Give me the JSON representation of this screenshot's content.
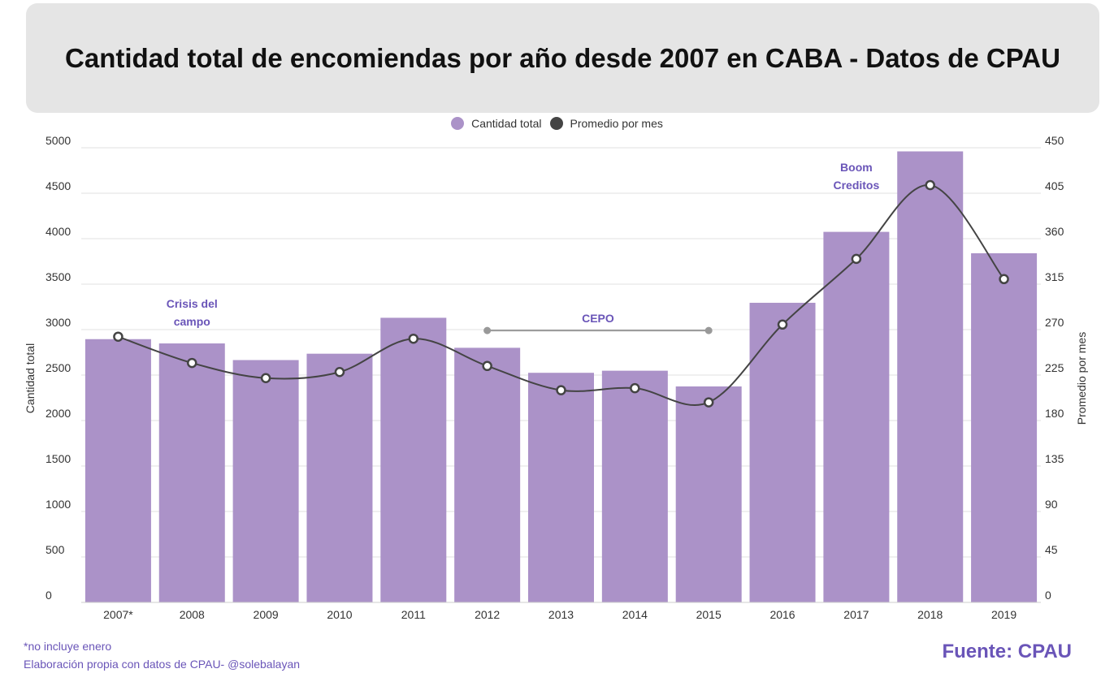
{
  "title": "Cantidad total de encomiendas por año desde 2007 en CABA - Datos de CPAU",
  "legend": {
    "bars_label": "Cantidad total",
    "line_label": "Promedio por mes"
  },
  "colors": {
    "bar": "#ab92c8",
    "line": "#444444",
    "annotation": "#6a55b8",
    "cepo_line": "#999999",
    "grid": "#e0e0e0",
    "axis_text": "#333333"
  },
  "chart_data": {
    "type": "bar+line",
    "categories": [
      "2007*",
      "2008",
      "2009",
      "2010",
      "2011",
      "2012",
      "2013",
      "2014",
      "2015",
      "2016",
      "2017",
      "2018",
      "2019"
    ],
    "series": [
      {
        "name": "Cantidad total",
        "type": "bar",
        "axis": "left",
        "values": [
          2895,
          2848,
          2665,
          2735,
          3130,
          2800,
          2525,
          2548,
          2375,
          3295,
          4075,
          4960,
          3840
        ]
      },
      {
        "name": "Promedio por mes",
        "type": "line",
        "axis": "right",
        "values": [
          263,
          237,
          222,
          228,
          261,
          234,
          210,
          212,
          198,
          275,
          340,
          413,
          320
        ]
      }
    ],
    "y_left": {
      "label": "Cantidad total",
      "min": 0,
      "max": 5000,
      "ticks": [
        "0",
        "500",
        "1000",
        "1500",
        "2000",
        "2500",
        "3000",
        "3500",
        "4000",
        "4500",
        "5000"
      ]
    },
    "y_right": {
      "label": "Promedio por mes",
      "min": 0,
      "max": 450,
      "ticks": [
        "0",
        "45",
        "90",
        "135",
        "180",
        "225",
        "270",
        "315",
        "360",
        "405",
        "450"
      ]
    },
    "annotations": [
      {
        "lines": [
          "Crisis del",
          "campo"
        ],
        "category": "2008",
        "value": 3240
      },
      {
        "lines": [
          "Boom",
          "Creditos"
        ],
        "category": "2017",
        "value": 4740
      },
      {
        "lines": [
          "CEPO"
        ],
        "category_span": [
          "2012",
          "2015"
        ],
        "value": 2990
      }
    ]
  },
  "footnotes": {
    "note": "*no incluye enero",
    "credit": "Elaboración propia con datos de CPAU-  @solebalayan"
  },
  "source": "Fuente: CPAU"
}
